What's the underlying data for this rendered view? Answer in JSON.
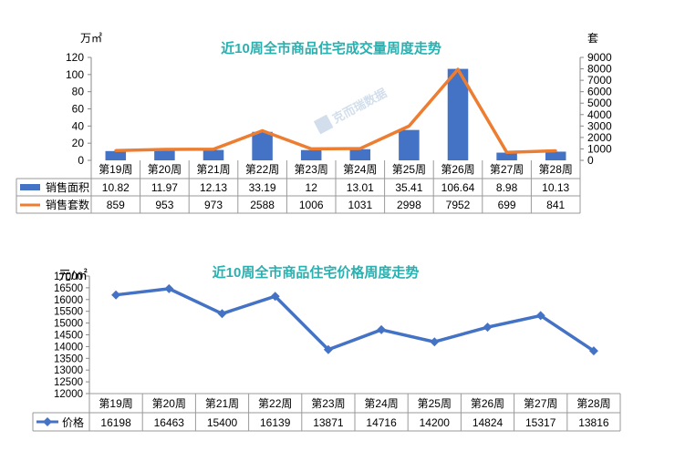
{
  "chart_data": [
    {
      "type": "bar",
      "title": "近10周全市商品住宅成交量周度走势",
      "watermark": "克而瑞数据",
      "categories": [
        "第19周",
        "第20周",
        "第21周",
        "第22周",
        "第23周",
        "第24周",
        "第25周",
        "第26周",
        "第27周",
        "第28周"
      ],
      "y_left_unit": "万㎡",
      "y_right_unit": "套",
      "ylim_left": [
        0,
        120
      ],
      "yticks_left": [
        0,
        20,
        40,
        60,
        80,
        100,
        120
      ],
      "ylim_right": [
        0,
        9000
      ],
      "yticks_right": [
        0,
        1000,
        2000,
        3000,
        4000,
        5000,
        6000,
        7000,
        8000,
        9000
      ],
      "grid": false,
      "legend": "data-table",
      "series": [
        {
          "name": "销售面积",
          "type": "bar",
          "axis": "left",
          "color": "#4472C4",
          "values": [
            10.82,
            11.97,
            12.13,
            33.19,
            12,
            13.01,
            35.41,
            106.64,
            8.98,
            10.13
          ],
          "labels": [
            "10.82",
            "11.97",
            "12.13",
            "33.19",
            "12",
            "13.01",
            "35.41",
            "106.64",
            "8.98",
            "10.13"
          ]
        },
        {
          "name": "销售套数",
          "type": "line",
          "axis": "right",
          "color": "#ED7D31",
          "values": [
            859,
            953,
            973,
            2588,
            1006,
            1031,
            2998,
            7952,
            699,
            841
          ],
          "labels": [
            "859",
            "953",
            "973",
            "2588",
            "1006",
            "1031",
            "2998",
            "7952",
            "699",
            "841"
          ]
        }
      ]
    },
    {
      "type": "line",
      "title": "近10周全市商品住宅价格周度走势",
      "categories": [
        "第19周",
        "第20周",
        "第21周",
        "第22周",
        "第23周",
        "第24周",
        "第25周",
        "第26周",
        "第27周",
        "第28周"
      ],
      "y_unit": "元/㎡",
      "ylim": [
        12000,
        17000
      ],
      "yticks": [
        12000,
        12500,
        13000,
        13500,
        14000,
        14500,
        15000,
        15500,
        16000,
        16500,
        17000
      ],
      "grid": false,
      "legend": "data-table",
      "series": [
        {
          "name": "价格",
          "type": "line",
          "color": "#4472C4",
          "marker": "diamond",
          "values": [
            16198,
            16463,
            15400,
            16139,
            13871,
            14716,
            14200,
            14824,
            15317,
            13816
          ],
          "labels": [
            "16198",
            "16463",
            "15400",
            "16139",
            "13871",
            "14716",
            "14200",
            "14824",
            "15317",
            "13816"
          ]
        }
      ]
    }
  ]
}
